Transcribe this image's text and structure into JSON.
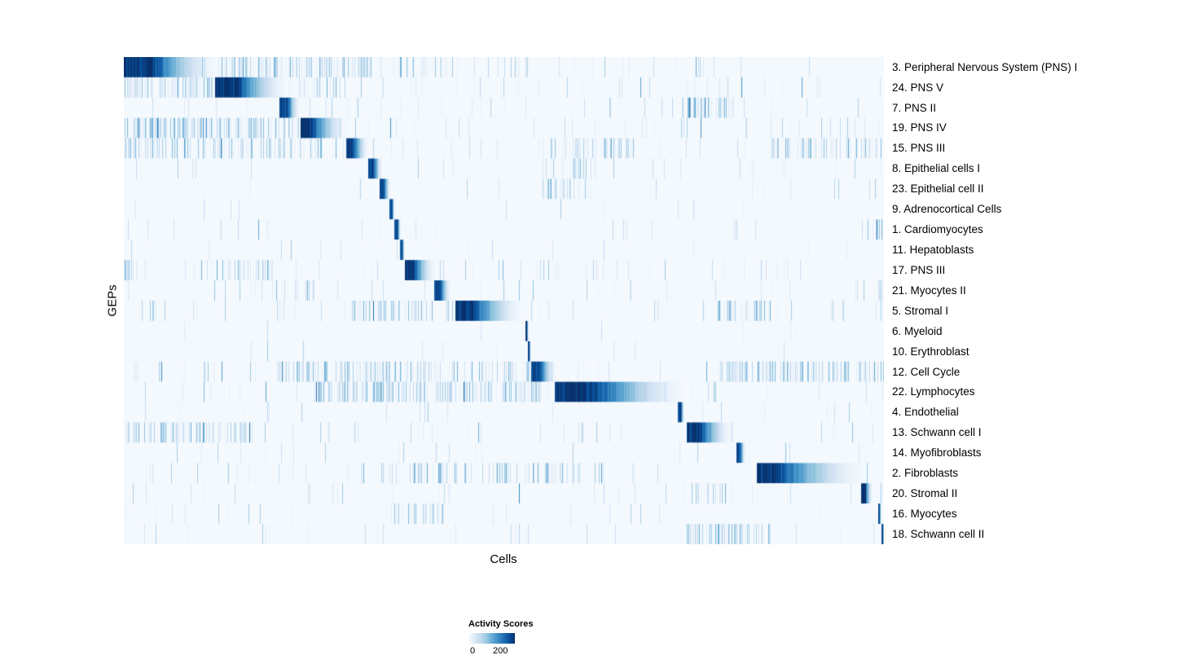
{
  "chart_data": {
    "type": "heatmap",
    "title": "",
    "xlabel": "Cells",
    "ylabel": "GEPs",
    "legend": {
      "title": "Activity Scores",
      "min": "0",
      "max": "200"
    },
    "colormap": [
      "#f7fbff",
      "#deebf7",
      "#c6dbef",
      "#9ecae1",
      "#6baed6",
      "#4292c6",
      "#2171b5",
      "#08519c",
      "#08306b"
    ],
    "value_range": [
      0,
      200
    ],
    "n_rows": 24,
    "rows": [
      {
        "label": "3. Peripheral Nervous System (PNS) I",
        "block_start": 0.0,
        "block_width": 0.118,
        "flat": 0.3,
        "peak": 1.0,
        "noise": 0.5,
        "patches": [
          [
            0.12,
            0.33,
            0.45
          ],
          [
            0.36,
            0.42,
            0.28
          ]
        ]
      },
      {
        "label": "24. PNS V",
        "block_start": 0.12,
        "block_width": 0.092,
        "flat": 0.3,
        "peak": 1.0,
        "noise": 0.45,
        "patches": [
          [
            0.0,
            0.12,
            0.4
          ],
          [
            0.23,
            0.3,
            0.25
          ]
        ]
      },
      {
        "label": "7. PNS II",
        "block_start": 0.204,
        "block_width": 0.026,
        "flat": 0.4,
        "peak": 0.95,
        "noise": 0.3,
        "patches": [
          [
            0.73,
            0.8,
            0.5
          ]
        ]
      },
      {
        "label": "19. PNS IV",
        "block_start": 0.232,
        "block_width": 0.058,
        "flat": 0.25,
        "peak": 1.0,
        "noise": 0.5,
        "patches": [
          [
            0.0,
            0.23,
            0.55
          ]
        ]
      },
      {
        "label": "15. PNS III",
        "block_start": 0.292,
        "block_width": 0.028,
        "flat": 0.35,
        "peak": 0.95,
        "noise": 0.45,
        "patches": [
          [
            0.0,
            0.29,
            0.3
          ],
          [
            0.55,
            0.67,
            0.35
          ],
          [
            0.85,
            1.0,
            0.3
          ]
        ]
      },
      {
        "label": "8. Epithelial cells I",
        "block_start": 0.321,
        "block_width": 0.018,
        "flat": 0.4,
        "peak": 0.95,
        "noise": 0.2,
        "patches": [
          [
            0.55,
            0.62,
            0.25
          ]
        ]
      },
      {
        "label": "23. Epithelial cell II",
        "block_start": 0.336,
        "block_width": 0.014,
        "flat": 0.4,
        "peak": 0.95,
        "noise": 0.18,
        "patches": [
          [
            0.55,
            0.62,
            0.3
          ]
        ]
      },
      {
        "label": "9. Adrenocortical Cells",
        "block_start": 0.349,
        "block_width": 0.007,
        "flat": 0.5,
        "peak": 0.9,
        "noise": 0.15,
        "patches": []
      },
      {
        "label": "1. Cardiomyocytes",
        "block_start": 0.355,
        "block_width": 0.009,
        "flat": 0.5,
        "peak": 0.95,
        "noise": 0.15,
        "patches": [
          [
            0.97,
            1.0,
            0.3
          ]
        ]
      },
      {
        "label": "11. Hepatoblasts",
        "block_start": 0.363,
        "block_width": 0.006,
        "flat": 0.5,
        "peak": 0.9,
        "noise": 0.12,
        "patches": []
      },
      {
        "label": "17. PNS III",
        "block_start": 0.369,
        "block_width": 0.038,
        "flat": 0.3,
        "peak": 1.0,
        "noise": 0.4,
        "patches": [
          [
            0.0,
            0.012,
            0.9
          ],
          [
            0.1,
            0.2,
            0.3
          ]
        ]
      },
      {
        "label": "21. Myocytes II",
        "block_start": 0.408,
        "block_width": 0.021,
        "flat": 0.35,
        "peak": 0.95,
        "noise": 0.3,
        "patches": [
          [
            0.2,
            0.25,
            0.3
          ],
          [
            0.992,
            1.0,
            0.8
          ]
        ]
      },
      {
        "label": "5. Stromal I",
        "block_start": 0.436,
        "block_width": 0.085,
        "flat": 0.25,
        "peak": 1.0,
        "noise": 0.4,
        "patches": [
          [
            0.3,
            0.45,
            0.35
          ],
          [
            0.78,
            0.85,
            0.3
          ]
        ]
      },
      {
        "label": "6. Myeloid",
        "block_start": 0.528,
        "block_width": 0.004,
        "flat": 0.5,
        "peak": 0.95,
        "noise": 0.1,
        "patches": []
      },
      {
        "label": "10. Erythroblast",
        "block_start": 0.531,
        "block_width": 0.004,
        "flat": 0.5,
        "peak": 0.9,
        "noise": 0.1,
        "patches": []
      },
      {
        "label": "12. Cell Cycle",
        "block_start": 0.535,
        "block_width": 0.032,
        "flat": 0.35,
        "peak": 0.95,
        "noise": 0.55,
        "patches": [
          [
            0.2,
            0.42,
            0.45
          ],
          [
            0.42,
            0.55,
            0.28
          ],
          [
            0.78,
            1.0,
            0.45
          ]
        ]
      },
      {
        "label": "22. Lymphocytes",
        "block_start": 0.566,
        "block_width": 0.168,
        "flat": 0.3,
        "peak": 1.0,
        "noise": 0.5,
        "patches": [
          [
            0.25,
            0.55,
            0.45
          ]
        ]
      },
      {
        "label": "4. Endothelial",
        "block_start": 0.728,
        "block_width": 0.009,
        "flat": 0.5,
        "peak": 0.95,
        "noise": 0.2,
        "patches": []
      },
      {
        "label": "13. Schwann cell I",
        "block_start": 0.74,
        "block_width": 0.057,
        "flat": 0.3,
        "peak": 1.0,
        "noise": 0.4,
        "patches": [
          [
            0.0,
            0.17,
            0.45
          ]
        ]
      },
      {
        "label": "14. Myofibroblasts",
        "block_start": 0.806,
        "block_width": 0.011,
        "flat": 0.4,
        "peak": 0.95,
        "noise": 0.25,
        "patches": []
      },
      {
        "label": "2. Fibroblasts",
        "block_start": 0.832,
        "block_width": 0.135,
        "flat": 0.2,
        "peak": 1.0,
        "noise": 0.45,
        "patches": [
          [
            0.3,
            0.6,
            0.3
          ]
        ]
      },
      {
        "label": "20. Stromal II",
        "block_start": 0.969,
        "block_width": 0.015,
        "flat": 0.4,
        "peak": 1.0,
        "noise": 0.35,
        "patches": [
          [
            0.74,
            0.8,
            0.3
          ]
        ]
      },
      {
        "label": "16. Myocytes",
        "block_start": 0.992,
        "block_width": 0.004,
        "flat": 0.5,
        "peak": 0.9,
        "noise": 0.25,
        "patches": [
          [
            0.35,
            0.42,
            0.3
          ]
        ]
      },
      {
        "label": "18. Schwann cell II",
        "block_start": 0.996,
        "block_width": 0.004,
        "flat": 0.5,
        "peak": 1.0,
        "noise": 0.35,
        "patches": [
          [
            0.74,
            0.85,
            0.4
          ]
        ]
      }
    ]
  }
}
